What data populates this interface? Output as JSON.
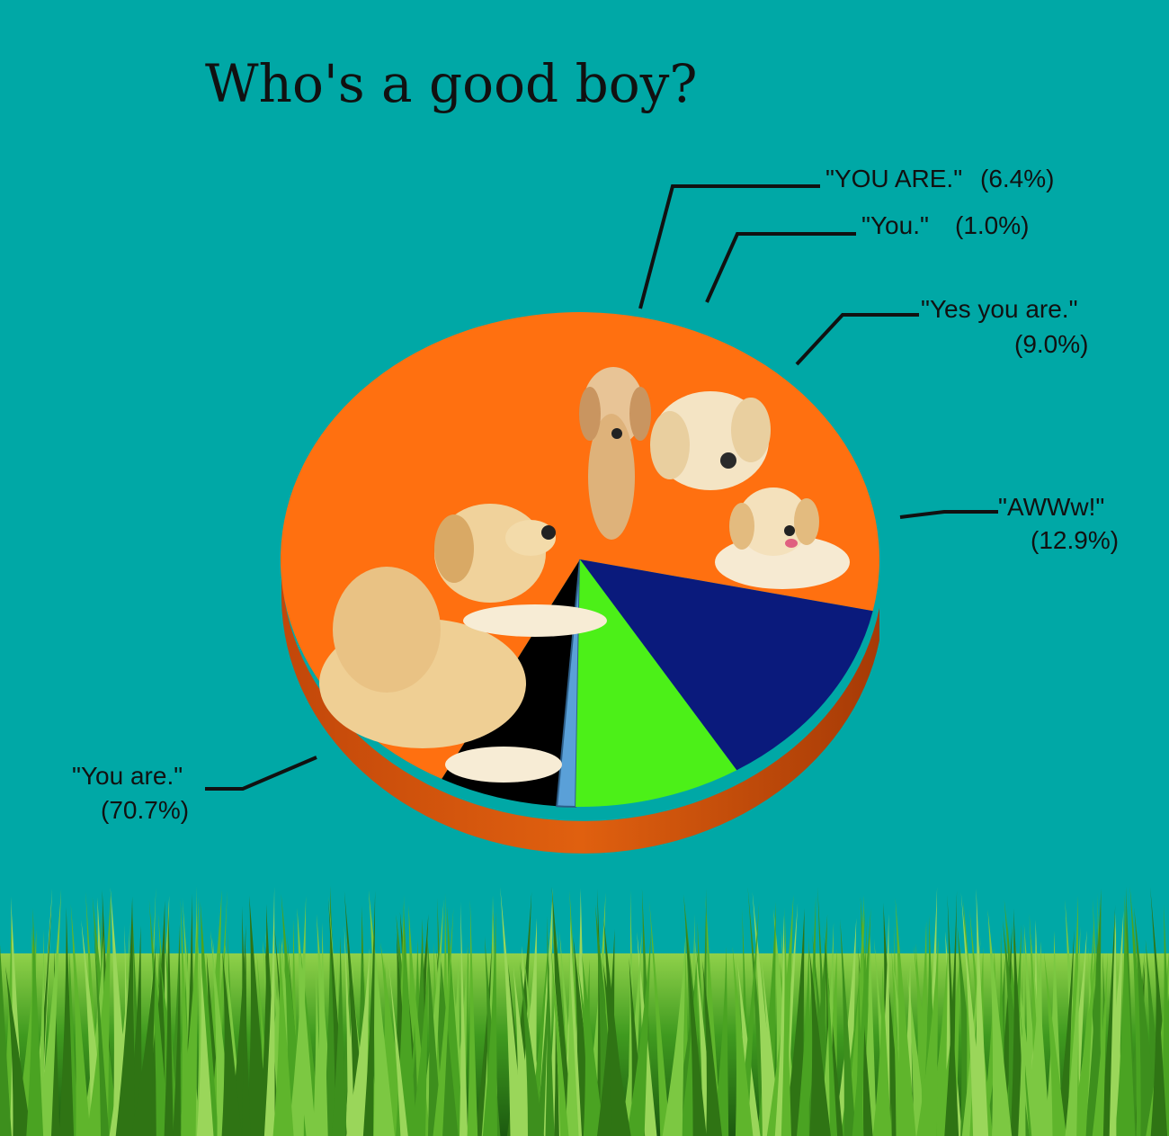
{
  "chart_data": {
    "type": "pie",
    "title": "Who's a good boy?",
    "slices": [
      {
        "label": "\"You are.\"",
        "pct_text": "(70.7%)",
        "value": 70.7,
        "color": "#ff7010",
        "picture": "golden-retriever-lying-icon"
      },
      {
        "label": "\"YOU ARE.\"",
        "pct_text": "(6.4%)",
        "value": 6.4,
        "color": "#000000",
        "picture": "labrador-icon"
      },
      {
        "label": "\"You.\"",
        "pct_text": "(1.0%)",
        "value": 1.0,
        "color": "#5aa0d8",
        "picture": ""
      },
      {
        "label": "\"Yes you are.\"",
        "pct_text": "(9.0%)",
        "value": 9.0,
        "color": "#4cf018",
        "picture": "golden-retriever-face-icon"
      },
      {
        "label": "\"AWWw!\"",
        "pct_text": "(12.9%)",
        "value": 12.9,
        "color": "#0a1a7c",
        "picture": "puppy-icon"
      }
    ],
    "legend": "none",
    "style": "3d-exploded"
  },
  "background": {
    "sky_color": "#00a8a6",
    "ground": "grass-icon"
  }
}
